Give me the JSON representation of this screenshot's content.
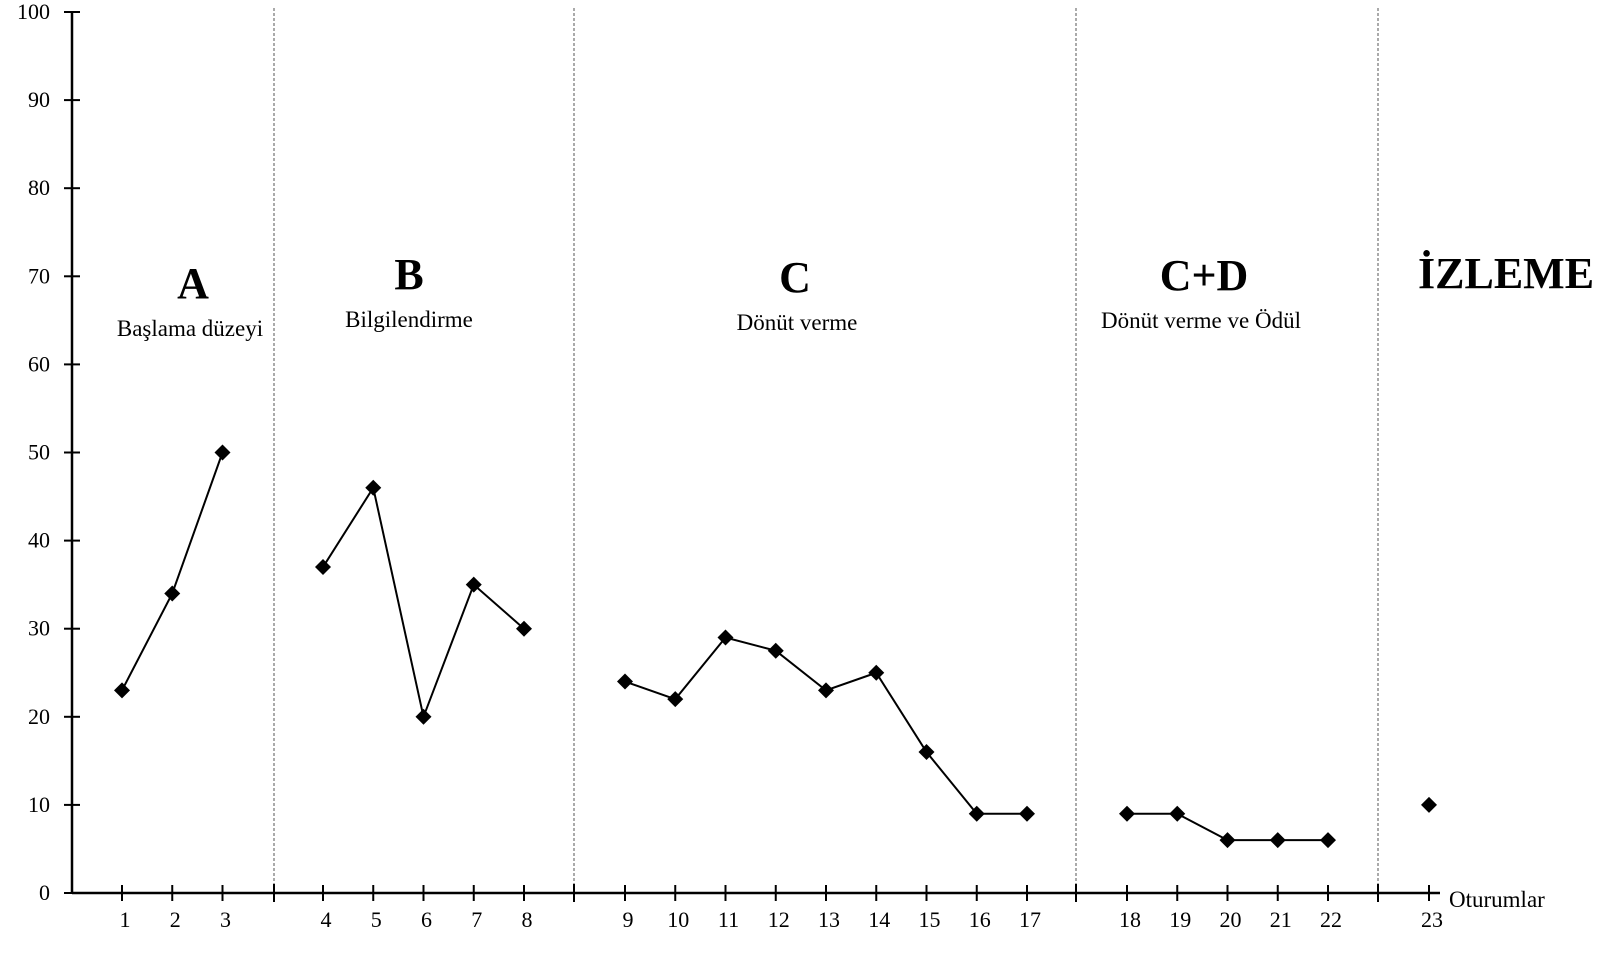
{
  "chart_data": {
    "type": "line",
    "title": "",
    "xlabel": "Oturumlar",
    "ylabel": "",
    "ylim": [
      0,
      100
    ],
    "yticks": [
      0,
      10,
      20,
      30,
      40,
      50,
      60,
      70,
      80,
      90,
      100
    ],
    "xlim": [
      0,
      23
    ],
    "grid": false,
    "phases": [
      {
        "letter": "A",
        "name": "Başlama düzeyi",
        "sessions": [
          1,
          2,
          3
        ],
        "values": [
          23,
          34,
          50
        ]
      },
      {
        "letter": "B",
        "name": "Bilgilendirme",
        "sessions": [
          4,
          5,
          6,
          7,
          8
        ],
        "values": [
          37,
          46,
          20,
          35,
          30
        ]
      },
      {
        "letter": "C",
        "name": "Dönüt verme",
        "sessions": [
          9,
          10,
          11,
          12,
          13,
          14,
          15,
          16,
          17
        ],
        "values": [
          24,
          22,
          29,
          27.5,
          23,
          25,
          16,
          9,
          9
        ]
      },
      {
        "letter": "C+D",
        "name": "Dönüt verme ve Ödül",
        "sessions": [
          18,
          19,
          20,
          21,
          22
        ],
        "values": [
          9,
          9,
          6,
          6,
          6
        ]
      },
      {
        "letter": "İZLEME",
        "name": "",
        "sessions": [
          23
        ],
        "values": [
          10
        ]
      }
    ]
  }
}
